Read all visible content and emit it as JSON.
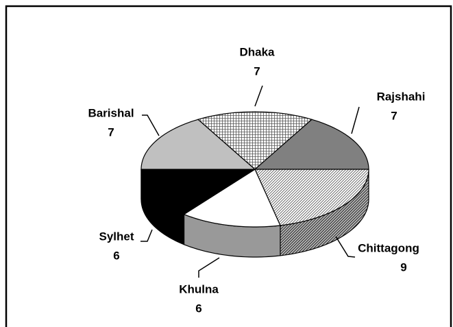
{
  "chart_data": {
    "type": "pie",
    "categories": [
      "Dhaka",
      "Rajshahi",
      "Chittagong",
      "Khulna",
      "Sylhet",
      "Barishal"
    ],
    "values": [
      7,
      7,
      9,
      6,
      6,
      7
    ],
    "colors": [
      "#ffffff",
      "#808080",
      "#ffffff",
      "#ffffff",
      "#000000",
      "#c0c0c0"
    ],
    "patterns": [
      "grid",
      "none",
      "diagonal",
      "none",
      "none",
      "none"
    ]
  }
}
